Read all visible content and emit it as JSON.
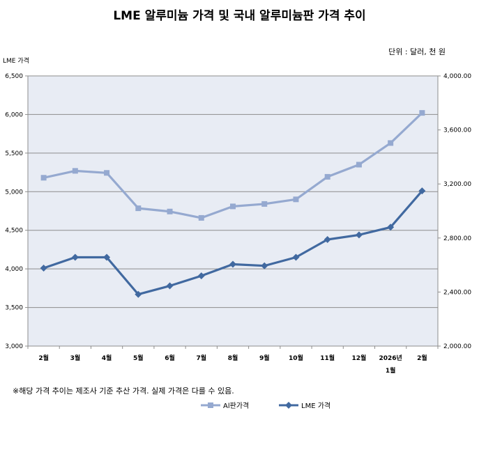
{
  "chart_data": {
    "type": "line",
    "title": "LME 알루미늄 가격 및 국내 알루미늄판 가격 추이",
    "unit_note": "단위 : 달러, 천 원",
    "left_axis_title": "LME 가격",
    "footnote": "※해당 가격 추이는 제조사 기준 추산 가격. 실제 가격은 다를 수 있음.",
    "categories": [
      "2월",
      "3월",
      "4월",
      "5월",
      "6월",
      "7월",
      "8월",
      "9월",
      "10월",
      "11월",
      "12월",
      "2026년\n1월",
      "2월"
    ],
    "ylim_left": [
      3000,
      6500
    ],
    "yticks_left": [
      "3,000",
      "3,500",
      "4,000",
      "4,500",
      "5,000",
      "5,500",
      "6,000",
      "6,500"
    ],
    "ylim_right": [
      2000,
      4000
    ],
    "yticks_right": [
      "2,000.00",
      "2,400.00",
      "2,800.00",
      "3,200.00",
      "3,600.00",
      "4,000.00"
    ],
    "grid": true,
    "legend_position": "bottom",
    "series": [
      {
        "name": "Al판가격",
        "axis": "right",
        "color": "#95a9d0",
        "marker": "square",
        "values": [
          3246,
          3297,
          3282,
          3020,
          2996,
          2949,
          3034,
          3052,
          3086,
          3253,
          3343,
          3503,
          3726
        ]
      },
      {
        "name": "LME 가격",
        "axis": "left",
        "color": "#4169a0",
        "marker": "diamond",
        "values": [
          4010,
          4150,
          4150,
          3670,
          3780,
          3910,
          4060,
          4040,
          4150,
          4380,
          4440,
          4540,
          5010
        ]
      }
    ]
  }
}
